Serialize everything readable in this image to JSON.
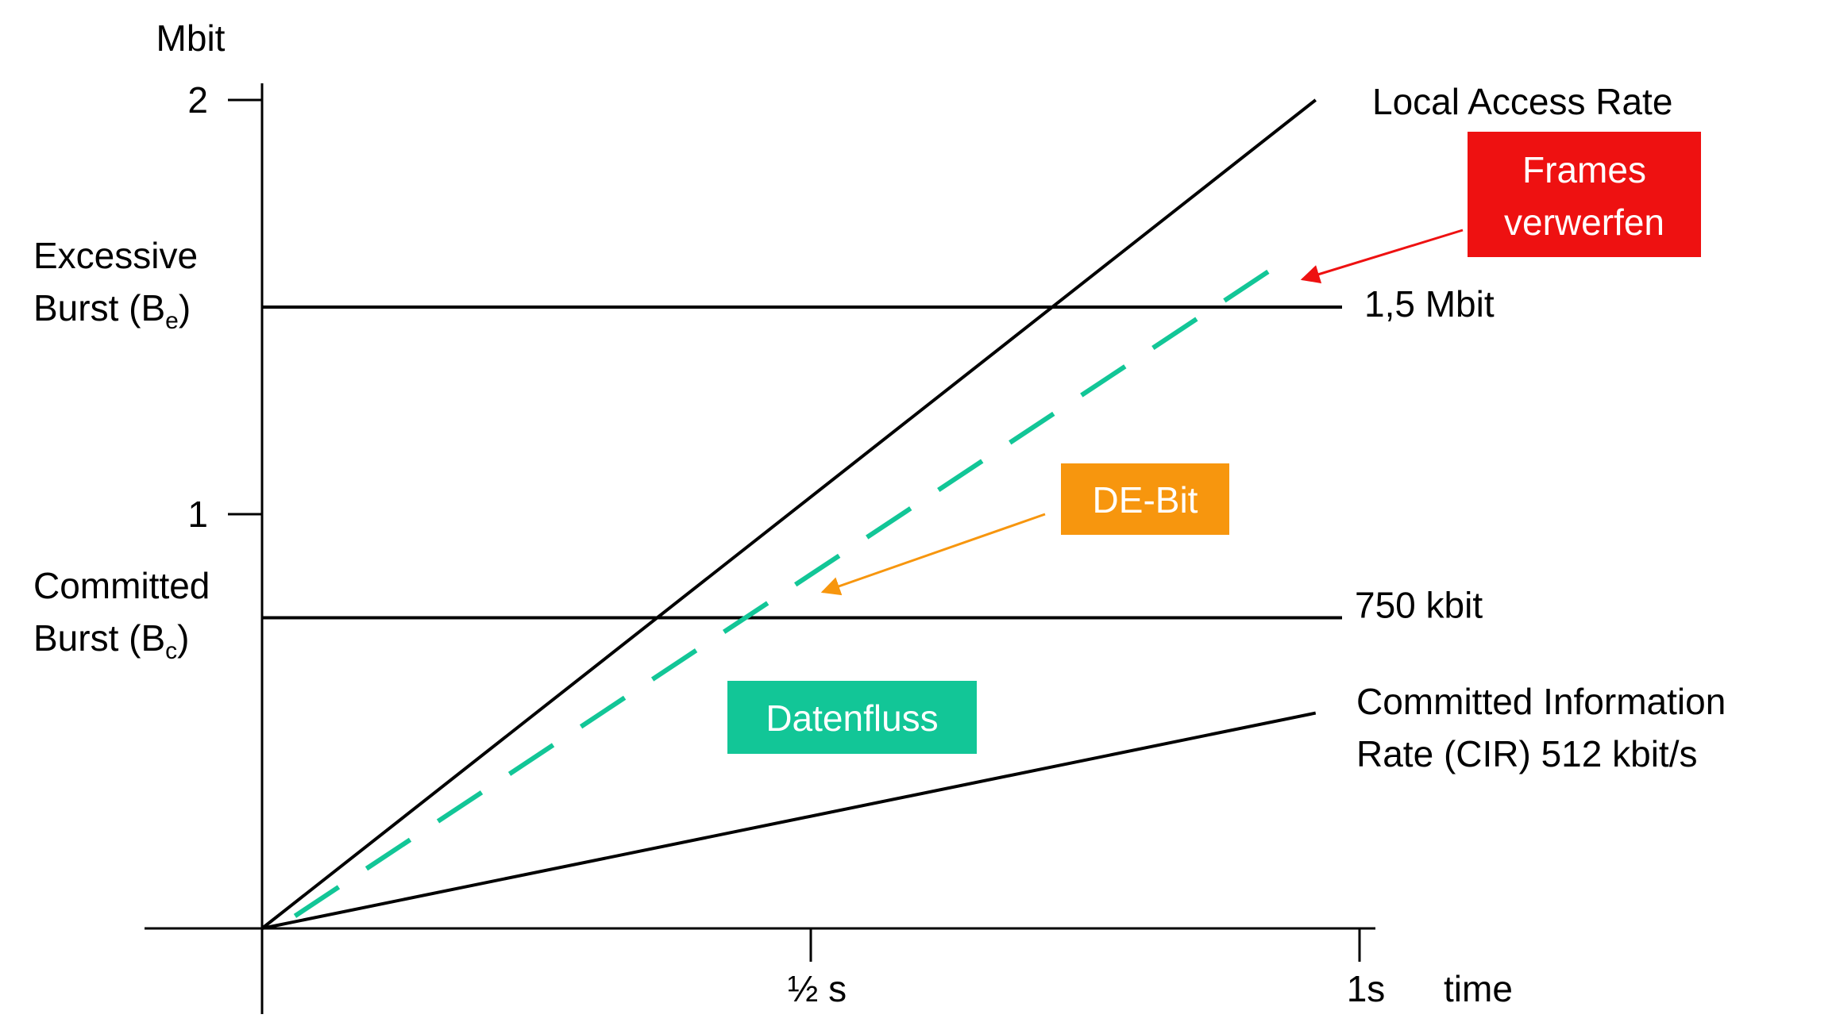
{
  "chart_data": {
    "type": "line",
    "yaxis_unit": "Mbit",
    "xaxis_label": "time",
    "x_ticks": [
      {
        "value": 0.5,
        "label": "½ s"
      },
      {
        "value": 1.0,
        "label": "1s"
      }
    ],
    "y_ticks": [
      {
        "value": 1,
        "label": "1"
      },
      {
        "value": 2,
        "label": "2"
      }
    ],
    "xlim": [
      0,
      1
    ],
    "ylim": [
      0,
      2
    ],
    "grid": false,
    "reference_lines": [
      {
        "y": 1.5,
        "label": "1,5 Mbit",
        "color": "#000000"
      },
      {
        "y": 0.75,
        "label": "750 kbit",
        "color": "#000000"
      }
    ],
    "series": [
      {
        "name": "Local Access Rate",
        "x": [
          0,
          0.96
        ],
        "y": [
          0,
          2.0
        ],
        "color": "#000000",
        "style": "solid"
      },
      {
        "name": "Committed Information Rate (CIR) 512 kbit/s",
        "x": [
          0,
          0.96
        ],
        "y": [
          0,
          0.52
        ],
        "color": "#000000",
        "style": "solid"
      },
      {
        "name": "Datenfluss",
        "x": [
          0.03,
          0.925
        ],
        "y": [
          0.03,
          1.6
        ],
        "color": "#12c697",
        "style": "dashed"
      }
    ],
    "side_labels": {
      "excessive_burst_line1": "Excessive",
      "excessive_burst_line2": "Burst (B",
      "excessive_burst_sub": "e",
      "excessive_burst_close": ")",
      "committed_burst_line1": "Committed",
      "committed_burst_line2": "Burst (B",
      "committed_burst_sub": "c",
      "committed_burst_close": ")"
    },
    "series_labels": {
      "local_access_rate": "Local Access Rate",
      "cir_line1": "Committed Information",
      "cir_line2": "Rate (CIR) 512 kbit/s"
    },
    "annotations": {
      "frames_line1": "Frames",
      "frames_line2": "verwerfen",
      "frames_color": "#ee1111",
      "de_bit": "DE-Bit",
      "de_bit_color": "#f7960e",
      "datenfluss": "Datenfluss",
      "datenfluss_color": "#12c697"
    }
  }
}
